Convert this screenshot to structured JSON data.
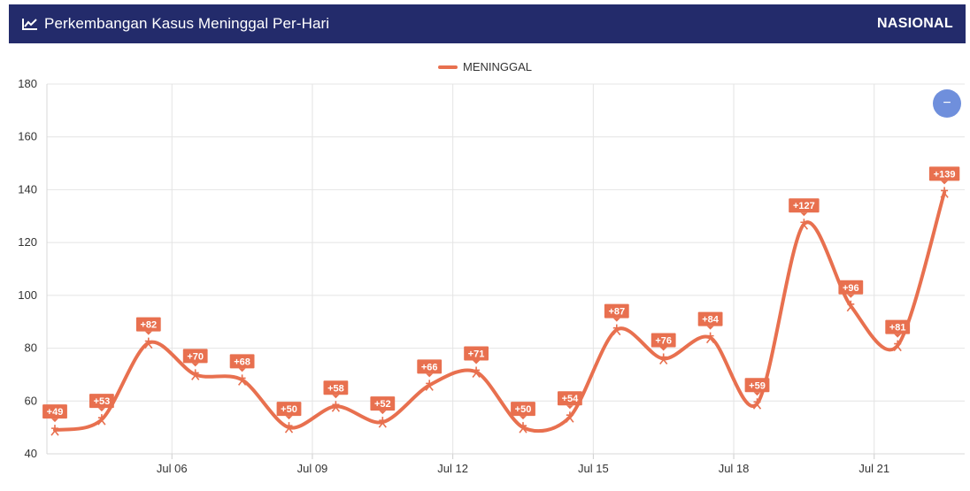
{
  "header": {
    "title": "Perkembangan Kasus Meninggal Per-Hari",
    "region": "NASIONAL",
    "icon": "line-chart-icon"
  },
  "zoom_button": {
    "label": "−",
    "icon": "minus-icon"
  },
  "colors": {
    "series": "#e8704f",
    "header_bg": "#232b6b",
    "zoom": "#6f8fdc"
  },
  "chart_data": {
    "type": "line",
    "series": [
      {
        "name": "MENINGGAL",
        "values": [
          49,
          53,
          82,
          70,
          68,
          50,
          58,
          52,
          66,
          71,
          50,
          54,
          87,
          76,
          84,
          59,
          127,
          96,
          81,
          139
        ],
        "labels": [
          "+49",
          "+53",
          "+82",
          "+70",
          "+68",
          "+50",
          "+58",
          "+52",
          "+66",
          "+71",
          "+50",
          "+54",
          "+87",
          "+76",
          "+84",
          "+59",
          "+127",
          "+96",
          "+81",
          "+139"
        ]
      }
    ],
    "x_ticks": [
      {
        "label": "Jul 06",
        "pos": 2.5
      },
      {
        "label": "Jul 09",
        "pos": 5.5
      },
      {
        "label": "Jul 12",
        "pos": 8.5
      },
      {
        "label": "Jul 15",
        "pos": 11.5
      },
      {
        "label": "Jul 18",
        "pos": 14.5
      },
      {
        "label": "Jul 21",
        "pos": 17.5
      }
    ],
    "y_ticks": [
      40,
      60,
      80,
      100,
      120,
      140,
      160,
      180
    ],
    "ylim": [
      40,
      180
    ],
    "grid": true,
    "legend": "top-center"
  }
}
